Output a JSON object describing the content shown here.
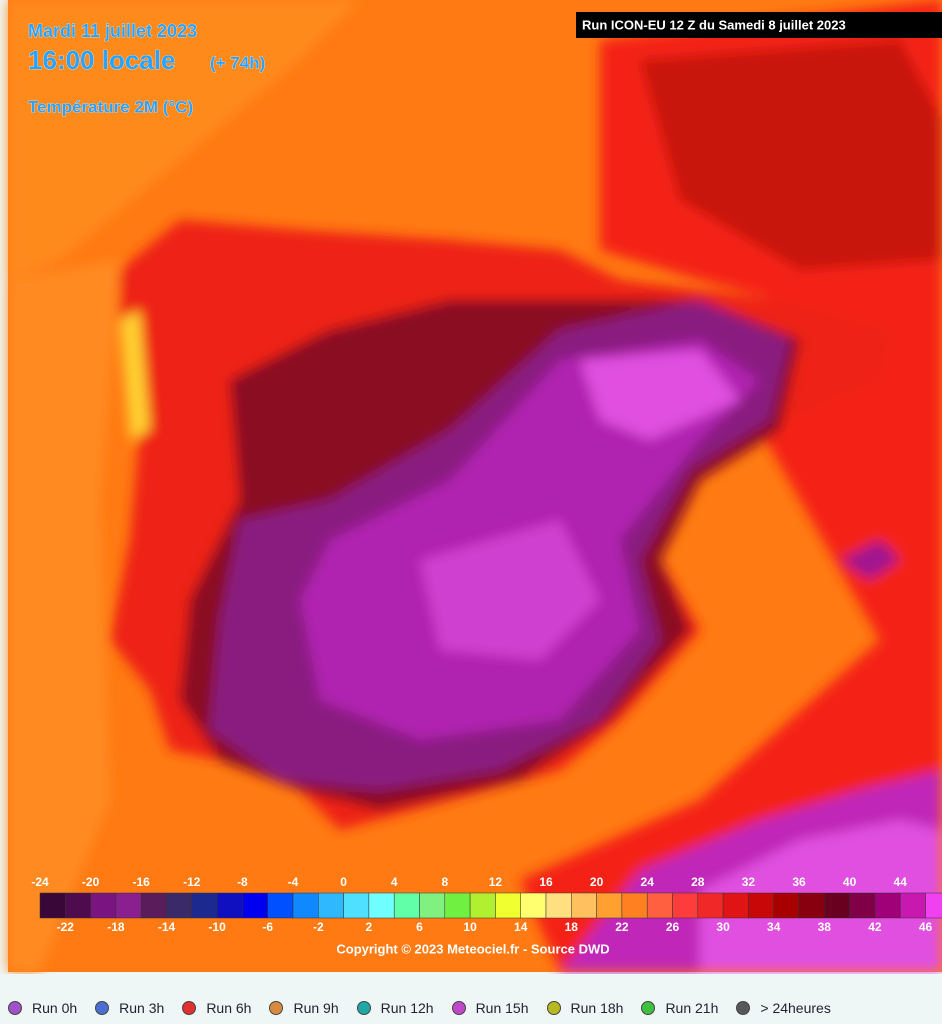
{
  "header": {
    "date": "Mardi 11 juillet 2023",
    "time": "16:00 locale",
    "offset": "(+ 74h)",
    "variable": "Température 2M (°C)",
    "run": "Run ICON-EU 12 Z du Samedi 8 juillet 2023"
  },
  "colorbar": {
    "top_labels": [
      -24,
      -20,
      -16,
      -12,
      -8,
      -4,
      0,
      4,
      8,
      12,
      16,
      20,
      24,
      28,
      32,
      36,
      40,
      44
    ],
    "bottom_labels": [
      -22,
      -18,
      -14,
      -10,
      -6,
      -2,
      2,
      6,
      10,
      14,
      18,
      22,
      26,
      30,
      34,
      38,
      42,
      46
    ],
    "colors": [
      "#3a0838",
      "#4e0c4e",
      "#7a1480",
      "#8a2090",
      "#5a1c5a",
      "#3a2a6a",
      "#1c2a90",
      "#1010c0",
      "#0000f0",
      "#0050ff",
      "#1088ff",
      "#30b8ff",
      "#50e0ff",
      "#70ffff",
      "#60ffa8",
      "#80f080",
      "#70f040",
      "#b0f030",
      "#f0ff30",
      "#ffff70",
      "#ffe080",
      "#ffc060",
      "#ffa030",
      "#ff8020",
      "#ff6040",
      "#ff3c3c",
      "#f02828",
      "#e01414",
      "#c80808",
      "#a80000",
      "#880010",
      "#6a0020",
      "#800048",
      "#a00078",
      "#c818b0",
      "#f040f0"
    ]
  },
  "copyright": "Copyright © 2023 Meteociel.fr - Source DWD",
  "runs": [
    {
      "label": "Run 0h",
      "color": "#a050c8"
    },
    {
      "label": "Run 3h",
      "color": "#4a6fd0"
    },
    {
      "label": "Run 6h",
      "color": "#e03030"
    },
    {
      "label": "Run 9h",
      "color": "#d88a40"
    },
    {
      "label": "Run 12h",
      "color": "#20a8a8"
    },
    {
      "label": "Run 15h",
      "color": "#c048c8"
    },
    {
      "label": "Run 18h",
      "color": "#b8b820"
    },
    {
      "label": "Run 21h",
      "color": "#40c040"
    },
    {
      "label": "> 24heures",
      "color": "#585858"
    }
  ]
}
